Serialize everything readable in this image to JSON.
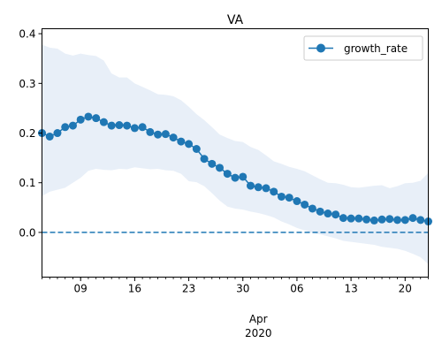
{
  "chart_data": {
    "type": "line",
    "title": "VA",
    "xlabel": "",
    "ylabel": "",
    "x_axis": {
      "type": "date",
      "range": [
        "2020-03-04",
        "2020-04-23"
      ],
      "major_ticks": [
        {
          "date": "2020-03-09",
          "label": "09"
        },
        {
          "date": "2020-03-16",
          "label": "16"
        },
        {
          "date": "2020-03-23",
          "label": "23"
        },
        {
          "date": "2020-03-30",
          "label": "30"
        },
        {
          "date": "2020-04-06",
          "label": "06"
        },
        {
          "date": "2020-04-13",
          "label": "13"
        },
        {
          "date": "2020-04-20",
          "label": "20"
        }
      ],
      "group_label": {
        "date": "2020-04-01",
        "month": "Apr",
        "year": "2020"
      }
    },
    "ylim": [
      -0.09,
      0.41
    ],
    "yticks": [
      0.0,
      0.1,
      0.2,
      0.3,
      0.4
    ],
    "ytick_labels": [
      "0.0",
      "0.1",
      "0.2",
      "0.3",
      "0.4"
    ],
    "legend": {
      "position": "top-right"
    },
    "reference_line": {
      "y": 0.0,
      "style": "dashed",
      "color": "#1f77b4"
    },
    "colors": {
      "line": "#1f77b4",
      "band": "#dbe7f4"
    },
    "series": [
      {
        "name": "growth_rate",
        "marker": "circle",
        "x": [
          "2020-03-04",
          "2020-03-05",
          "2020-03-06",
          "2020-03-07",
          "2020-03-08",
          "2020-03-09",
          "2020-03-10",
          "2020-03-11",
          "2020-03-12",
          "2020-03-13",
          "2020-03-14",
          "2020-03-15",
          "2020-03-16",
          "2020-03-17",
          "2020-03-18",
          "2020-03-19",
          "2020-03-20",
          "2020-03-21",
          "2020-03-22",
          "2020-03-23",
          "2020-03-24",
          "2020-03-25",
          "2020-03-26",
          "2020-03-27",
          "2020-03-28",
          "2020-03-29",
          "2020-03-30",
          "2020-03-31",
          "2020-04-01",
          "2020-04-02",
          "2020-04-03",
          "2020-04-04",
          "2020-04-05",
          "2020-04-06",
          "2020-04-07",
          "2020-04-08",
          "2020-04-09",
          "2020-04-10",
          "2020-04-11",
          "2020-04-12",
          "2020-04-13",
          "2020-04-14",
          "2020-04-15",
          "2020-04-16",
          "2020-04-17",
          "2020-04-18",
          "2020-04-19",
          "2020-04-20",
          "2020-04-21",
          "2020-04-22",
          "2020-04-23"
        ],
        "values": [
          0.2,
          0.193,
          0.2,
          0.212,
          0.215,
          0.227,
          0.233,
          0.23,
          0.222,
          0.215,
          0.216,
          0.215,
          0.21,
          0.212,
          0.202,
          0.197,
          0.198,
          0.191,
          0.183,
          0.178,
          0.168,
          0.148,
          0.138,
          0.13,
          0.118,
          0.11,
          0.112,
          0.094,
          0.091,
          0.089,
          0.082,
          0.072,
          0.07,
          0.063,
          0.056,
          0.048,
          0.042,
          0.038,
          0.036,
          0.029,
          0.028,
          0.028,
          0.026,
          0.024,
          0.026,
          0.027,
          0.025,
          0.025,
          0.029,
          0.025,
          0.022
        ],
        "lower": [
          0.073,
          0.082,
          0.086,
          0.09,
          0.1,
          0.11,
          0.124,
          0.128,
          0.126,
          0.125,
          0.128,
          0.127,
          0.131,
          0.129,
          0.127,
          0.128,
          0.125,
          0.124,
          0.118,
          0.103,
          0.101,
          0.093,
          0.079,
          0.064,
          0.052,
          0.048,
          0.046,
          0.042,
          0.039,
          0.035,
          0.03,
          0.022,
          0.016,
          0.009,
          0.004,
          -0.001,
          -0.004,
          -0.008,
          -0.012,
          -0.017,
          -0.019,
          -0.021,
          -0.023,
          -0.025,
          -0.029,
          -0.031,
          -0.033,
          -0.037,
          -0.043,
          -0.05,
          -0.064
        ],
        "upper": [
          0.378,
          0.372,
          0.37,
          0.36,
          0.356,
          0.36,
          0.357,
          0.355,
          0.346,
          0.32,
          0.312,
          0.312,
          0.3,
          0.293,
          0.286,
          0.278,
          0.277,
          0.274,
          0.266,
          0.253,
          0.238,
          0.226,
          0.212,
          0.197,
          0.19,
          0.184,
          0.182,
          0.172,
          0.166,
          0.155,
          0.143,
          0.138,
          0.132,
          0.128,
          0.123,
          0.115,
          0.107,
          0.1,
          0.099,
          0.096,
          0.091,
          0.09,
          0.092,
          0.094,
          0.095,
          0.089,
          0.093,
          0.099,
          0.1,
          0.104,
          0.12
        ]
      }
    ]
  }
}
